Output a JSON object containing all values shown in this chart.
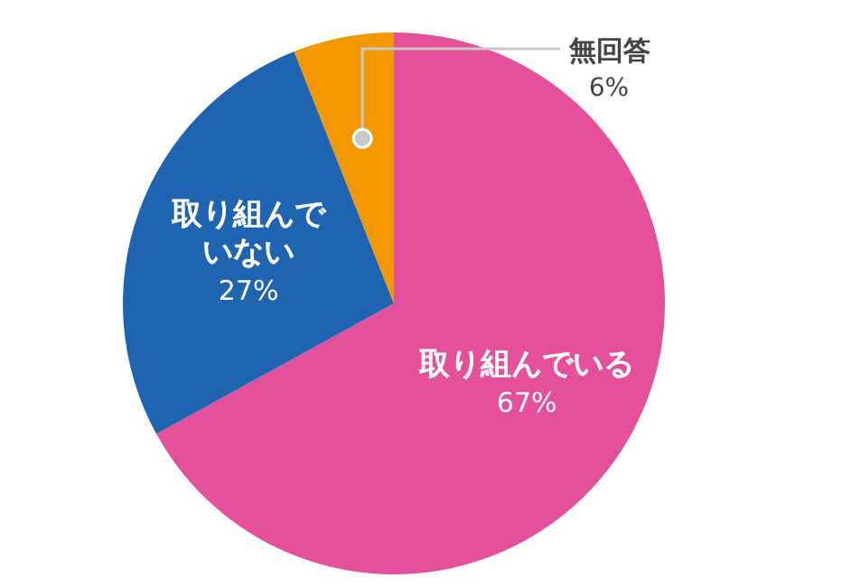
{
  "chart_data": {
    "type": "pie",
    "categories": [
      "取り組んでいる",
      "取り組んでいない",
      "無回答"
    ],
    "values": [
      67,
      27,
      6
    ],
    "value_labels": [
      "67%",
      "27%",
      "6%"
    ],
    "colors": [
      "#e4509a",
      "#1e64b0",
      "#f39800"
    ]
  }
}
